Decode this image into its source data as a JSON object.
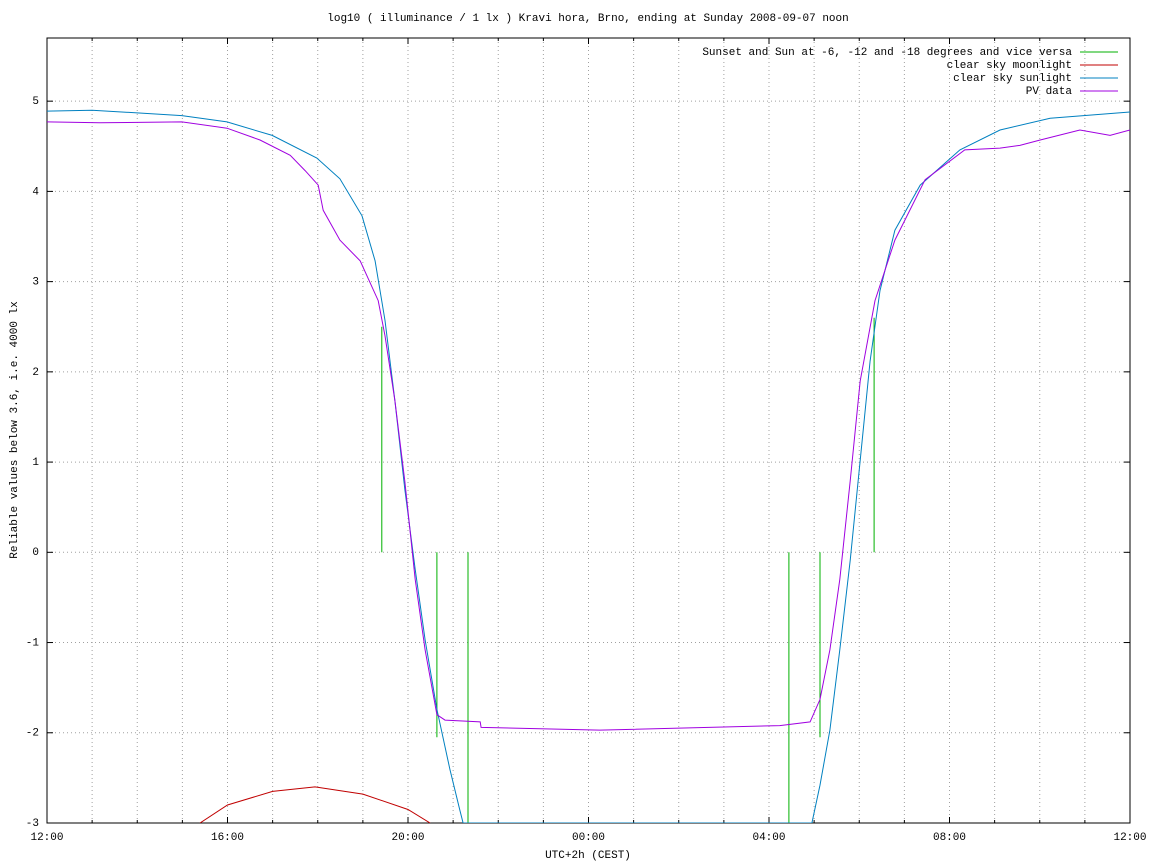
{
  "chart_data": {
    "type": "line",
    "title": "log10 ( illuminance / 1 lx ) Kravi hora, Brno, ending at Sunday 2008-09-07 noon",
    "x_label": "UTC+2h (CEST)",
    "y_label": "Reliable values below 3.6, i.e. 4000 lx",
    "xlim": [
      0,
      24
    ],
    "ylim": [
      -3,
      5.7
    ],
    "xticks": [
      {
        "value": 0,
        "label": "12:00"
      },
      {
        "value": 4,
        "label": "16:00"
      },
      {
        "value": 8,
        "label": "20:00"
      },
      {
        "value": 12,
        "label": "00:00"
      },
      {
        "value": 16,
        "label": "04:00"
      },
      {
        "value": 20,
        "label": "08:00"
      },
      {
        "value": 24,
        "label": "12:00"
      }
    ],
    "xminorticks": [
      1,
      2,
      3,
      5,
      6,
      7,
      9,
      10,
      11,
      13,
      14,
      15,
      17,
      18,
      19,
      21,
      22,
      23
    ],
    "yticks": [
      -3,
      -2,
      -1,
      0,
      1,
      2,
      3,
      4,
      5
    ],
    "grid": true,
    "legend": "top-right",
    "series": [
      {
        "name": "Sunset and Sun at -6, -12 and -18 degrees and vice versa",
        "color": "#00b000",
        "x": [
          7.42,
          7.42,
          null,
          8.64,
          8.64,
          null,
          9.33,
          9.33,
          null,
          16.44,
          16.44,
          null,
          17.13,
          17.13,
          null,
          18.33,
          18.33
        ],
        "values": [
          0,
          2.5,
          null,
          0,
          -2.05,
          null,
          0,
          -3,
          null,
          0,
          -3,
          null,
          0,
          -2.05,
          null,
          0,
          2.6
        ]
      },
      {
        "name": "clear sky moonlight",
        "color": "#c00000",
        "x": [
          3.39,
          4,
          5,
          5.94,
          7,
          8,
          8.49
        ],
        "values": [
          -3,
          -2.8,
          -2.65,
          -2.6,
          -2.68,
          -2.85,
          -3
        ]
      },
      {
        "name": "clear sky sunlight",
        "color": "#0080c0",
        "x": [
          0,
          1.0,
          2.99,
          3.99,
          4.99,
          5.98,
          6.49,
          6.98,
          7.27,
          7.49,
          7.71,
          7.93,
          8.16,
          8.38,
          8.64,
          8.93,
          9.15,
          9.22,
          16.95,
          17.13,
          17.35,
          17.57,
          17.8,
          18.02,
          18.24,
          18.46,
          18.79,
          19.35,
          20.23,
          21.12,
          22.23,
          24
        ],
        "values": [
          4.89,
          4.9,
          4.84,
          4.77,
          4.62,
          4.37,
          4.14,
          3.73,
          3.23,
          2.57,
          1.68,
          0.7,
          -0.19,
          -0.97,
          -1.74,
          -2.41,
          -2.86,
          -3,
          -3,
          -2.58,
          -1.97,
          -1.08,
          -0.09,
          1.02,
          2.12,
          2.9,
          3.57,
          4.07,
          4.46,
          4.68,
          4.81,
          4.88
        ]
      },
      {
        "name": "PV data",
        "color": "#a000e0",
        "x": [
          0,
          1.17,
          2.99,
          3.99,
          4.72,
          5.39,
          5.72,
          6.01,
          6.12,
          6.49,
          6.94,
          7.34,
          7.49,
          7.71,
          7.93,
          8.16,
          8.38,
          8.64,
          8.82,
          9.6,
          9.62,
          12.25,
          16.24,
          16.91,
          17.13,
          17.35,
          17.57,
          17.8,
          18.02,
          18.35,
          18.79,
          19.46,
          20.34,
          21.12,
          21.56,
          22.01,
          22.89,
          23.56,
          24
        ],
        "values": [
          4.77,
          4.76,
          4.77,
          4.7,
          4.57,
          4.4,
          4.23,
          4.07,
          3.79,
          3.46,
          3.23,
          2.79,
          2.4,
          1.68,
          0.79,
          -0.3,
          -1.08,
          -1.8,
          -1.86,
          -1.88,
          -1.94,
          -1.97,
          -1.92,
          -1.88,
          -1.63,
          -1.08,
          -0.3,
          0.79,
          1.9,
          2.79,
          3.46,
          4.13,
          4.46,
          4.48,
          4.51,
          4.57,
          4.68,
          4.62,
          4.68
        ]
      }
    ]
  }
}
